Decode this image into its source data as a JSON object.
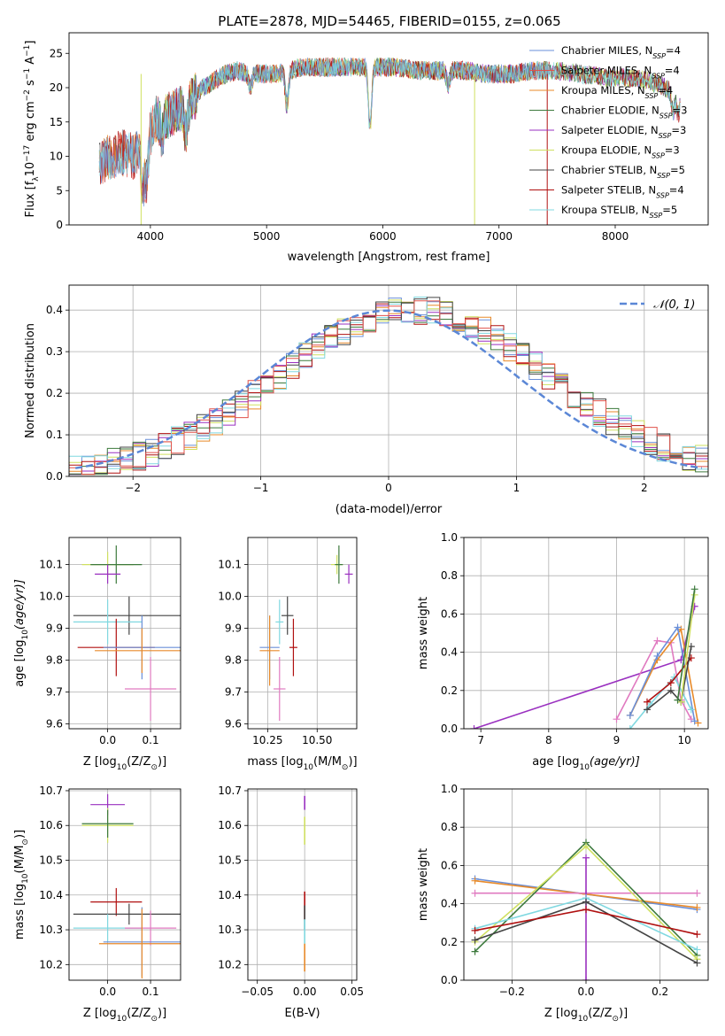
{
  "figure": {
    "title": "PLATE=2878, MJD=54465, FIBERID=0155, z=0.065"
  },
  "colors": {
    "chabrier_miles": "#6a8fd8",
    "salpeter_miles": "#e0524a",
    "kroupa_miles": "#e88a2a",
    "chabrier_elodie": "#3d7a3d",
    "salpeter_elodie": "#9a30c0",
    "kroupa_elodie": "#cfe060",
    "chabrier_stelib": "#444444",
    "salpeter_stelib": "#b01010",
    "kroupa_stelib": "#80d8e0",
    "pink": "#e07ac0",
    "normal": "#5b87d6",
    "grid": "#b0b0b0"
  },
  "chart_data": [
    {
      "id": "spectrum",
      "type": "line",
      "title": "",
      "xlabel": "wavelength [Angstrom, rest frame]",
      "ylabel": "Flux [f",
      "ylabel_sub": "λ",
      "ylabel_mid": "10",
      "ylabel_sup": "−17",
      "ylabel_end": " erg cm",
      "ylabel_sup2": "−2",
      "ylabel_end2": " s",
      "ylabel_sup3": "−1",
      "ylabel_end3": " A",
      "ylabel_sup4": "−1",
      "ylabel_close": "]",
      "xlim": [
        3300,
        8800
      ],
      "ylim": [
        0,
        28
      ],
      "xticks": [
        "4000",
        "5000",
        "6000",
        "7000",
        "8000"
      ],
      "xtick_values": [
        4000,
        5000,
        6000,
        7000,
        8000
      ],
      "yticks": [
        "0",
        "5",
        "10",
        "15",
        "20",
        "25"
      ],
      "ytick_values": [
        0,
        5,
        10,
        15,
        20,
        25
      ],
      "grid": false,
      "legend_position": "top-right",
      "continuum": [
        [
          3560,
          9
        ],
        [
          3650,
          10
        ],
        [
          3750,
          10.5
        ],
        [
          3850,
          10
        ],
        [
          3950,
          12
        ],
        [
          4050,
          15.5
        ],
        [
          4150,
          16
        ],
        [
          4250,
          17
        ],
        [
          4350,
          18
        ],
        [
          4450,
          20
        ],
        [
          4550,
          21
        ],
        [
          4650,
          22
        ],
        [
          4750,
          22.5
        ],
        [
          4850,
          22
        ],
        [
          4950,
          22
        ],
        [
          5100,
          22
        ],
        [
          5300,
          23
        ],
        [
          5500,
          23
        ],
        [
          5700,
          23
        ],
        [
          5900,
          23
        ],
        [
          6100,
          23
        ],
        [
          6300,
          22.5
        ],
        [
          6500,
          22.5
        ],
        [
          6700,
          22.5
        ],
        [
          6900,
          22
        ],
        [
          7100,
          22
        ],
        [
          7300,
          22.5
        ],
        [
          7500,
          22.5
        ],
        [
          7700,
          22
        ],
        [
          7900,
          21.5
        ],
        [
          8100,
          21.5
        ],
        [
          8300,
          21
        ],
        [
          8500,
          19.5
        ],
        [
          8560,
          19
        ]
      ],
      "features": [
        [
          3933,
          -6
        ],
        [
          3968,
          -6
        ],
        [
          4101,
          -3
        ],
        [
          4304,
          -4
        ],
        [
          4861,
          -2
        ],
        [
          5175,
          -5
        ],
        [
          5890,
          -9
        ],
        [
          6563,
          -2
        ],
        [
          8498,
          -3
        ],
        [
          8542,
          -3
        ]
      ],
      "legend": [
        {
          "label": "Chabrier MILES, N",
          "sub": "SSP",
          "suffix": "=4",
          "color_key": "chabrier_miles"
        },
        {
          "label": "Salpeter MILES, N",
          "sub": "SSP",
          "suffix": "=4",
          "color_key": "salpeter_miles"
        },
        {
          "label": "Kroupa MILES, N",
          "sub": "SSP",
          "suffix": "=4",
          "color_key": "kroupa_miles"
        },
        {
          "label": "Chabrier ELODIE, N",
          "sub": "SSP",
          "suffix": "=3",
          "color_key": "chabrier_elodie"
        },
        {
          "label": "Salpeter ELODIE, N",
          "sub": "SSP",
          "suffix": "=3",
          "color_key": "salpeter_elodie"
        },
        {
          "label": "Kroupa ELODIE, N",
          "sub": "SSP",
          "suffix": "=3",
          "color_key": "kroupa_elodie"
        },
        {
          "label": "Chabrier STELIB, N",
          "sub": "SSP",
          "suffix": "=5",
          "color_key": "chabrier_stelib"
        },
        {
          "label": "Salpeter STELIB, N",
          "sub": "SSP",
          "suffix": "=4",
          "color_key": "salpeter_stelib"
        },
        {
          "label": "Kroupa STELIB, N",
          "sub": "SSP",
          "suffix": "=5",
          "color_key": "kroupa_stelib"
        }
      ]
    },
    {
      "id": "residuals",
      "type": "line",
      "title": "",
      "xlabel": "(data-model)/error",
      "ylabel": "Normed distribution",
      "xlim": [
        -2.5,
        2.5
      ],
      "ylim": [
        0,
        0.46
      ],
      "xticks": [
        "−2",
        "−1",
        "0",
        "1",
        "2"
      ],
      "xtick_values": [
        -2,
        -1,
        0,
        1,
        2
      ],
      "yticks": [
        "0.0",
        "0.1",
        "0.2",
        "0.3",
        "0.4"
      ],
      "ytick_values": [
        0,
        0.1,
        0.2,
        0.3,
        0.4
      ],
      "grid": true,
      "legend_position": "top-right",
      "legend": [
        {
          "label": "𝒩(0, 1)",
          "color_key": "normal"
        }
      ],
      "normal_mu": 0,
      "normal_sigma": 1,
      "bin_width": 0.1
    },
    {
      "id": "age_vs_z",
      "type": "scatter",
      "title": "",
      "xlabel": "Z [log",
      "xlabel_sub": "10",
      "xlabel_mid": "(Z/Z",
      "xlabel_sub2": "⊙",
      "xlabel_end": ")]",
      "ylabel": "age  [log",
      "ylabel_sub": "10",
      "ylabel_end": "(age/yr)]",
      "xlim": [
        -0.09,
        0.17
      ],
      "ylim": [
        9.585,
        10.185
      ],
      "xticks": [
        "0.0",
        "0.1"
      ],
      "xtick_values": [
        0.0,
        0.1
      ],
      "yticks": [
        "9.6",
        "9.7",
        "9.8",
        "9.9",
        "10.0",
        "10.1"
      ],
      "ytick_values": [
        9.6,
        9.7,
        9.8,
        9.9,
        10.0,
        10.1
      ],
      "grid": true,
      "points": [
        {
          "x": 0.0,
          "y": 10.1,
          "xerr": 0.06,
          "yerr": 0.04,
          "color_key": "kroupa_elodie"
        },
        {
          "x": 0.02,
          "y": 10.1,
          "xerr": 0.06,
          "yerr": 0.06,
          "color_key": "chabrier_elodie"
        },
        {
          "x": 0.0,
          "y": 10.07,
          "xerr": 0.03,
          "yerr": 0.03,
          "color_key": "salpeter_elodie"
        },
        {
          "x": 0.05,
          "y": 9.94,
          "xerr": 0.13,
          "yerr": 0.06,
          "color_key": "chabrier_stelib"
        },
        {
          "x": 0.0,
          "y": 9.92,
          "xerr": 0.08,
          "yerr": 0.07,
          "color_key": "kroupa_stelib"
        },
        {
          "x": 0.02,
          "y": 9.84,
          "xerr": 0.09,
          "yerr": 0.09,
          "color_key": "salpeter_stelib"
        },
        {
          "x": 0.08,
          "y": 9.84,
          "xerr": 0.09,
          "yerr": 0.1,
          "color_key": "chabrier_miles"
        },
        {
          "x": 0.08,
          "y": 9.83,
          "xerr": 0.11,
          "yerr": 0.07,
          "color_key": "kroupa_miles"
        },
        {
          "x": 0.1,
          "y": 9.71,
          "xerr": 0.06,
          "yerr": 0.1,
          "color_key": "pink"
        }
      ]
    },
    {
      "id": "age_vs_mass",
      "type": "scatter",
      "title": "",
      "xlabel": "mass [log",
      "xlabel_sub": "10",
      "xlabel_mid": "(M/M",
      "xlabel_sub2": "⊙",
      "xlabel_end": ")]",
      "ylabel": "",
      "xlim": [
        10.15,
        10.7
      ],
      "ylim": [
        9.585,
        10.185
      ],
      "xticks": [
        "10.25",
        "10.50"
      ],
      "xtick_values": [
        10.25,
        10.5
      ],
      "yticks": [
        "9.6",
        "9.7",
        "9.8",
        "9.9",
        "10.0",
        "10.1"
      ],
      "ytick_values": [
        9.6,
        9.7,
        9.8,
        9.9,
        10.0,
        10.1
      ],
      "grid": true,
      "points": [
        {
          "x": 10.6,
          "y": 10.1,
          "xerr": 0.03,
          "yerr": 0.03,
          "color_key": "kroupa_elodie"
        },
        {
          "x": 10.61,
          "y": 10.1,
          "xerr": 0.02,
          "yerr": 0.06,
          "color_key": "chabrier_elodie"
        },
        {
          "x": 10.66,
          "y": 10.07,
          "xerr": 0.02,
          "yerr": 0.03,
          "color_key": "salpeter_elodie"
        },
        {
          "x": 10.35,
          "y": 9.94,
          "xerr": 0.03,
          "yerr": 0.06,
          "color_key": "chabrier_stelib"
        },
        {
          "x": 10.31,
          "y": 9.92,
          "xerr": 0.02,
          "yerr": 0.07,
          "color_key": "kroupa_stelib"
        },
        {
          "x": 10.38,
          "y": 9.84,
          "xerr": 0.02,
          "yerr": 0.09,
          "color_key": "salpeter_stelib"
        },
        {
          "x": 10.26,
          "y": 9.84,
          "xerr": 0.05,
          "yerr": 0.1,
          "color_key": "chabrier_miles"
        },
        {
          "x": 10.26,
          "y": 9.83,
          "xerr": 0.05,
          "yerr": 0.11,
          "color_key": "kroupa_miles"
        },
        {
          "x": 10.31,
          "y": 9.71,
          "xerr": 0.03,
          "yerr": 0.1,
          "color_key": "pink"
        }
      ]
    },
    {
      "id": "weight_vs_age",
      "type": "line",
      "title": "",
      "xlabel": "age  [log",
      "xlabel_sub": "10",
      "xlabel_end": "(age/yr)]",
      "ylabel": "mass weight",
      "xlim": [
        6.75,
        10.35
      ],
      "ylim": [
        0,
        1
      ],
      "xticks": [
        "7",
        "8",
        "9",
        "10"
      ],
      "xtick_values": [
        7,
        8,
        9,
        10
      ],
      "yticks": [
        "0.0",
        "0.2",
        "0.4",
        "0.6",
        "0.8",
        "1.0"
      ],
      "ytick_values": [
        0,
        0.2,
        0.4,
        0.6,
        0.8,
        1.0
      ],
      "grid": true,
      "series": [
        {
          "color_key": "salpeter_elodie",
          "x": [
            6.9,
            9.95,
            10.15
          ],
          "y": [
            0.0,
            0.36,
            0.64
          ]
        },
        {
          "color_key": "pink",
          "x": [
            9.0,
            9.6,
            9.8,
            9.95,
            10.1
          ],
          "y": [
            0.05,
            0.46,
            0.45,
            0.15,
            0.05
          ]
        },
        {
          "color_key": "kroupa_miles",
          "x": [
            9.2,
            9.6,
            9.95,
            10.2
          ],
          "y": [
            0.07,
            0.36,
            0.52,
            0.03
          ]
        },
        {
          "color_key": "chabrier_miles",
          "x": [
            9.2,
            9.6,
            9.9,
            10.15
          ],
          "y": [
            0.07,
            0.38,
            0.53,
            0.04
          ]
        },
        {
          "color_key": "kroupa_stelib",
          "x": [
            9.2,
            9.5,
            9.85,
            10.1
          ],
          "y": [
            0.0,
            0.13,
            0.27,
            0.1
          ]
        },
        {
          "color_key": "salpeter_stelib",
          "x": [
            9.45,
            9.8,
            10.1
          ],
          "y": [
            0.14,
            0.24,
            0.37
          ]
        },
        {
          "color_key": "chabrier_stelib",
          "x": [
            9.45,
            9.8,
            9.95,
            10.1
          ],
          "y": [
            0.1,
            0.2,
            0.14,
            0.43
          ]
        },
        {
          "color_key": "kroupa_elodie",
          "x": [
            9.95,
            10.15
          ],
          "y": [
            0.14,
            0.7
          ]
        },
        {
          "color_key": "chabrier_elodie",
          "x": [
            9.9,
            10.15
          ],
          "y": [
            0.15,
            0.73
          ]
        }
      ]
    },
    {
      "id": "mass_vs_z",
      "type": "scatter",
      "title": "",
      "xlabel": "Z [log",
      "xlabel_sub": "10",
      "xlabel_mid": "(Z/Z",
      "xlabel_sub2": "⊙",
      "xlabel_end": ")]",
      "ylabel": "mass [log",
      "ylabel_sub": "10",
      "ylabel_mid": "(M/M",
      "ylabel_sub2": "⊙",
      "ylabel_end": ")]",
      "xlim": [
        -0.09,
        0.17
      ],
      "ylim": [
        10.155,
        10.705
      ],
      "xticks": [
        "0.0",
        "0.1"
      ],
      "xtick_values": [
        0.0,
        0.1
      ],
      "yticks": [
        "10.2",
        "10.3",
        "10.4",
        "10.5",
        "10.6",
        "10.7"
      ],
      "ytick_values": [
        10.2,
        10.3,
        10.4,
        10.5,
        10.6,
        10.7
      ],
      "grid": true,
      "points": [
        {
          "x": 0.0,
          "y": 10.66,
          "xerr": 0.04,
          "yerr": 0.03,
          "color_key": "salpeter_elodie"
        },
        {
          "x": 0.0,
          "y": 10.6,
          "xerr": 0.06,
          "yerr": 0.05,
          "color_key": "kroupa_elodie"
        },
        {
          "x": 0.0,
          "y": 10.605,
          "xerr": 0.06,
          "yerr": 0.04,
          "color_key": "chabrier_elodie"
        },
        {
          "x": 0.02,
          "y": 10.38,
          "xerr": 0.06,
          "yerr": 0.04,
          "color_key": "salpeter_stelib"
        },
        {
          "x": 0.05,
          "y": 10.345,
          "xerr": 0.13,
          "yerr": 0.03,
          "color_key": "chabrier_stelib"
        },
        {
          "x": 0.0,
          "y": 10.305,
          "xerr": 0.08,
          "yerr": 0.04,
          "color_key": "kroupa_stelib"
        },
        {
          "x": 0.1,
          "y": 10.305,
          "xerr": 0.06,
          "yerr": 0.05,
          "color_key": "pink"
        },
        {
          "x": 0.08,
          "y": 10.265,
          "xerr": 0.09,
          "yerr": 0.1,
          "color_key": "chabrier_miles"
        },
        {
          "x": 0.08,
          "y": 10.26,
          "xerr": 0.1,
          "yerr": 0.1,
          "color_key": "kroupa_miles"
        }
      ]
    },
    {
      "id": "mass_vs_ebv",
      "type": "scatter",
      "title": "",
      "xlabel": "E(B-V)",
      "ylabel": "",
      "xlim": [
        -0.06,
        0.055
      ],
      "ylim": [
        10.155,
        10.705
      ],
      "xticks": [
        "−0.05",
        "0.00",
        "0.05"
      ],
      "xtick_values": [
        -0.05,
        0.0,
        0.05
      ],
      "yticks": [
        "10.2",
        "10.3",
        "10.4",
        "10.5",
        "10.6",
        "10.7"
      ],
      "ytick_values": [
        10.2,
        10.3,
        10.4,
        10.5,
        10.6,
        10.7
      ],
      "grid": true,
      "segments": [
        {
          "x": 0.0,
          "y0": 10.645,
          "y1": 10.685,
          "color_key": "salpeter_elodie"
        },
        {
          "x": 0.0,
          "y0": 10.545,
          "y1": 10.625,
          "color_key": "kroupa_elodie"
        },
        {
          "x": 0.0,
          "y0": 10.33,
          "y1": 10.41,
          "color_key": "salpeter_stelib"
        },
        {
          "x": 0.0,
          "y0": 10.3,
          "y1": 10.37,
          "color_key": "chabrier_stelib"
        },
        {
          "x": 0.0,
          "y0": 10.26,
          "y1": 10.33,
          "color_key": "kroupa_stelib"
        },
        {
          "x": 0.0,
          "y0": 10.18,
          "y1": 10.26,
          "color_key": "kroupa_miles"
        }
      ]
    },
    {
      "id": "weight_vs_z",
      "type": "line",
      "title": "",
      "xlabel": "Z [log",
      "xlabel_sub": "10",
      "xlabel_mid": "(Z/Z",
      "xlabel_sub2": "⊙",
      "xlabel_end": ")]",
      "ylabel": "mass weight",
      "xlim": [
        -0.33,
        0.33
      ],
      "ylim": [
        0,
        1
      ],
      "xticks": [
        "−0.2",
        "0.0",
        "0.2"
      ],
      "xtick_values": [
        -0.2,
        0.0,
        0.2
      ],
      "yticks": [
        "0.0",
        "0.2",
        "0.4",
        "0.6",
        "0.8",
        "1.0"
      ],
      "ytick_values": [
        0,
        0.2,
        0.4,
        0.6,
        0.8,
        1.0
      ],
      "grid": true,
      "series": [
        {
          "color_key": "chabrier_miles",
          "x": [
            -0.3,
            0.0,
            0.3
          ],
          "y": [
            0.53,
            0.45,
            0.37
          ]
        },
        {
          "color_key": "kroupa_miles",
          "x": [
            -0.3,
            0.0,
            0.3
          ],
          "y": [
            0.52,
            0.45,
            0.38
          ]
        },
        {
          "color_key": "pink",
          "x": [
            -0.3,
            0.0,
            0.3
          ],
          "y": [
            0.455,
            0.455,
            0.455
          ]
        },
        {
          "color_key": "chabrier_elodie",
          "x": [
            -0.3,
            0.0,
            0.3
          ],
          "y": [
            0.15,
            0.72,
            0.13
          ]
        },
        {
          "color_key": "kroupa_elodie",
          "x": [
            -0.3,
            0.0,
            0.3
          ],
          "y": [
            0.2,
            0.7,
            0.11
          ]
        },
        {
          "color_key": "salpeter_elodie",
          "x": [
            0.0,
            0.0
          ],
          "y": [
            0.0,
            0.64
          ]
        },
        {
          "color_key": "kroupa_stelib",
          "x": [
            -0.3,
            0.0,
            0.3
          ],
          "y": [
            0.27,
            0.43,
            0.16
          ]
        },
        {
          "color_key": "chabrier_stelib",
          "x": [
            -0.3,
            0.0,
            0.3
          ],
          "y": [
            0.21,
            0.41,
            0.09
          ]
        },
        {
          "color_key": "salpeter_stelib",
          "x": [
            -0.3,
            0.0,
            0.3
          ],
          "y": [
            0.26,
            0.37,
            0.24
          ]
        }
      ]
    }
  ]
}
